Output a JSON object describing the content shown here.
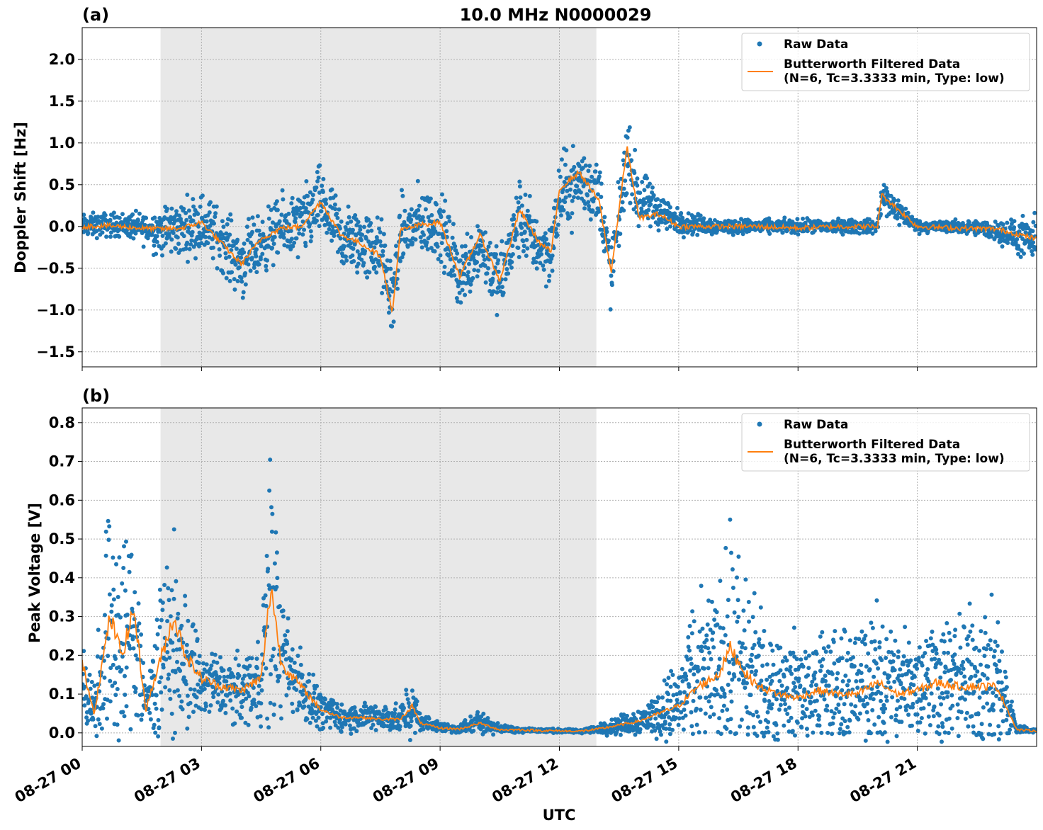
{
  "figure": {
    "title": "10.0 MHz N0000029",
    "xlabel": "UTC"
  },
  "chart_data": [
    {
      "type": "scatter",
      "panel_label": "(a)",
      "ylabel": "Doppler Shift [Hz]",
      "xlim": [
        0,
        24
      ],
      "ylim": [
        -1.68,
        2.38
      ],
      "yticks": [
        2.0,
        1.5,
        1.0,
        0.5,
        0.0,
        -0.5,
        -1.0,
        -1.5
      ],
      "ytick_labels": [
        "2.0",
        "1.5",
        "1.0",
        "0.5",
        "0.0",
        "−0.5",
        "−1.0",
        "−1.5"
      ],
      "xticks": [
        0,
        3,
        6,
        9,
        12,
        15,
        18,
        21
      ],
      "shaded_region_hours": [
        1.97,
        12.93
      ],
      "grid": true,
      "legend": "top-right",
      "series": [
        {
          "name": "Raw Data",
          "style": "points",
          "color": "#1f77b4",
          "x_hours": [
            0,
            0.5,
            1,
            1.5,
            2,
            2.5,
            3,
            3.5,
            4,
            4.5,
            5,
            5.5,
            6,
            6.5,
            7,
            7.5,
            7.8,
            8,
            8.5,
            9,
            9.5,
            10,
            10.5,
            11,
            11.5,
            11.8,
            12,
            12.5,
            13,
            13.3,
            13.7,
            14,
            14.5,
            15,
            16,
            17,
            18,
            19,
            20,
            20.1,
            21,
            22,
            23,
            24
          ],
          "center": [
            0,
            0.02,
            0.02,
            -0.02,
            -0.05,
            -0.02,
            0.05,
            -0.15,
            -0.45,
            -0.2,
            -0.02,
            0.0,
            0.3,
            -0.15,
            -0.2,
            -0.3,
            -0.9,
            -0.1,
            0.05,
            0.0,
            -0.6,
            -0.2,
            -0.7,
            0.1,
            -0.25,
            -0.3,
            0.35,
            0.55,
            0.4,
            -0.6,
            0.85,
            0.3,
            0.2,
            0.05,
            0.0,
            0.0,
            0.0,
            0.0,
            0.0,
            0.35,
            0.0,
            0.0,
            -0.05,
            -0.2
          ],
          "spread": [
            0.12,
            0.12,
            0.12,
            0.15,
            0.25,
            0.28,
            0.3,
            0.3,
            0.35,
            0.3,
            0.3,
            0.35,
            0.35,
            0.35,
            0.35,
            0.35,
            0.4,
            0.35,
            0.35,
            0.35,
            0.35,
            0.35,
            0.35,
            0.4,
            0.3,
            0.35,
            0.4,
            0.35,
            0.35,
            0.35,
            0.35,
            0.3,
            0.2,
            0.12,
            0.08,
            0.07,
            0.07,
            0.07,
            0.07,
            0.2,
            0.06,
            0.06,
            0.1,
            0.25
          ]
        },
        {
          "name": "Butterworth Filtered Data\n(N=6, Tc=3.3333 min, Type: low)",
          "style": "line",
          "color": "#ff7f0e",
          "x_hours": [
            0,
            0.5,
            1,
            1.5,
            2,
            2.5,
            3,
            3.5,
            4,
            4.5,
            5,
            5.5,
            6,
            6.5,
            7,
            7.5,
            7.8,
            8,
            8.5,
            9,
            9.5,
            10,
            10.5,
            11,
            11.5,
            11.8,
            12,
            12.5,
            13,
            13.3,
            13.7,
            14,
            14.5,
            15,
            16,
            17,
            18,
            19,
            20,
            20.1,
            21,
            22,
            23,
            24
          ],
          "values": [
            0.0,
            0.01,
            0.0,
            -0.02,
            -0.03,
            -0.02,
            0.05,
            -0.2,
            -0.45,
            -0.15,
            -0.02,
            0.0,
            0.3,
            -0.1,
            -0.2,
            -0.35,
            -1.05,
            -0.05,
            0.02,
            0.05,
            -0.6,
            -0.1,
            -0.65,
            0.2,
            -0.2,
            -0.3,
            0.45,
            0.65,
            0.3,
            -0.55,
            0.95,
            0.1,
            0.15,
            0.0,
            0.0,
            0.0,
            -0.02,
            0.0,
            0.0,
            0.38,
            0.0,
            -0.02,
            -0.03,
            -0.15
          ]
        }
      ]
    },
    {
      "type": "scatter",
      "panel_label": "(b)",
      "ylabel": "Peak Voltage [V]",
      "xlim": [
        0,
        24
      ],
      "ylim": [
        -0.035,
        0.838
      ],
      "yticks": [
        0.8,
        0.7,
        0.6,
        0.5,
        0.4,
        0.3,
        0.2,
        0.1,
        0.0
      ],
      "ytick_labels": [
        "0.8",
        "0.7",
        "0.6",
        "0.5",
        "0.4",
        "0.3",
        "0.2",
        "0.1",
        "0.0"
      ],
      "xticks": [
        0,
        3,
        6,
        9,
        12,
        15,
        18,
        21
      ],
      "xtick_labels": [
        "08-27 00",
        "08-27 03",
        "08-27 06",
        "08-27 09",
        "08-27 12",
        "08-27 15",
        "08-27 18",
        "08-27 21"
      ],
      "shaded_region_hours": [
        1.97,
        12.93
      ],
      "grid": true,
      "legend": "top-right",
      "series": [
        {
          "name": "Raw Data",
          "style": "points",
          "color": "#1f77b4",
          "x_hours": [
            0,
            0.3,
            0.7,
            1.0,
            1.3,
            1.6,
            2.0,
            2.3,
            2.6,
            3.0,
            3.5,
            4.0,
            4.5,
            4.75,
            5.0,
            5.5,
            6.0,
            6.5,
            7.0,
            7.5,
            8.0,
            8.3,
            8.5,
            9.0,
            9.5,
            10.0,
            10.5,
            11.0,
            11.5,
            12.0,
            12.5,
            13.0,
            13.5,
            14.0,
            14.5,
            15.0,
            15.5,
            16.0,
            16.3,
            16.7,
            17.0,
            17.5,
            18.0,
            18.5,
            19.0,
            19.5,
            20.0,
            20.5,
            21.0,
            21.5,
            22.0,
            22.5,
            23.0,
            23.5,
            24.0
          ],
          "center": [
            0.15,
            0.06,
            0.3,
            0.2,
            0.3,
            0.07,
            0.2,
            0.22,
            0.18,
            0.13,
            0.12,
            0.11,
            0.15,
            0.38,
            0.2,
            0.12,
            0.06,
            0.04,
            0.04,
            0.04,
            0.035,
            0.06,
            0.03,
            0.015,
            0.01,
            0.03,
            0.01,
            0.008,
            0.006,
            0.005,
            0.004,
            0.01,
            0.02,
            0.03,
            0.05,
            0.08,
            0.15,
            0.17,
            0.2,
            0.15,
            0.13,
            0.12,
            0.11,
            0.12,
            0.12,
            0.12,
            0.13,
            0.12,
            0.12,
            0.14,
            0.13,
            0.14,
            0.14,
            0.01,
            0.005
          ],
          "spread": [
            0.12,
            0.06,
            0.3,
            0.25,
            0.25,
            0.05,
            0.2,
            0.2,
            0.15,
            0.08,
            0.07,
            0.07,
            0.1,
            0.35,
            0.12,
            0.08,
            0.04,
            0.03,
            0.03,
            0.03,
            0.03,
            0.06,
            0.02,
            0.01,
            0.01,
            0.025,
            0.008,
            0.006,
            0.005,
            0.004,
            0.004,
            0.01,
            0.02,
            0.03,
            0.05,
            0.1,
            0.15,
            0.17,
            0.25,
            0.18,
            0.15,
            0.12,
            0.11,
            0.14,
            0.13,
            0.13,
            0.15,
            0.13,
            0.14,
            0.16,
            0.15,
            0.15,
            0.14,
            0.01,
            0.005
          ]
        },
        {
          "name": "Butterworth Filtered Data\n(N=6, Tc=3.3333 min, Type: low)",
          "style": "line",
          "color": "#ff7f0e",
          "x_hours": [
            0,
            0.3,
            0.7,
            1.0,
            1.3,
            1.6,
            2.0,
            2.3,
            2.6,
            3.0,
            3.5,
            4.0,
            4.5,
            4.75,
            5.0,
            5.5,
            6.0,
            6.5,
            7.0,
            7.5,
            8.0,
            8.3,
            8.5,
            9.0,
            9.5,
            10.0,
            10.5,
            11.0,
            11.5,
            12.0,
            12.5,
            13.0,
            13.5,
            14.0,
            14.5,
            15.0,
            15.5,
            16.0,
            16.3,
            16.7,
            17.0,
            17.5,
            18.0,
            18.5,
            19.0,
            19.5,
            20.0,
            20.5,
            21.0,
            21.5,
            22.0,
            22.5,
            23.0,
            23.5,
            24.0
          ],
          "values": [
            0.18,
            0.05,
            0.3,
            0.2,
            0.32,
            0.06,
            0.2,
            0.3,
            0.2,
            0.14,
            0.12,
            0.11,
            0.14,
            0.38,
            0.18,
            0.12,
            0.06,
            0.04,
            0.04,
            0.035,
            0.035,
            0.07,
            0.025,
            0.012,
            0.01,
            0.025,
            0.008,
            0.008,
            0.006,
            0.005,
            0.004,
            0.01,
            0.02,
            0.03,
            0.05,
            0.07,
            0.12,
            0.15,
            0.22,
            0.15,
            0.12,
            0.1,
            0.09,
            0.11,
            0.1,
            0.1,
            0.13,
            0.1,
            0.11,
            0.13,
            0.12,
            0.12,
            0.12,
            0.008,
            0.005
          ]
        }
      ]
    }
  ]
}
